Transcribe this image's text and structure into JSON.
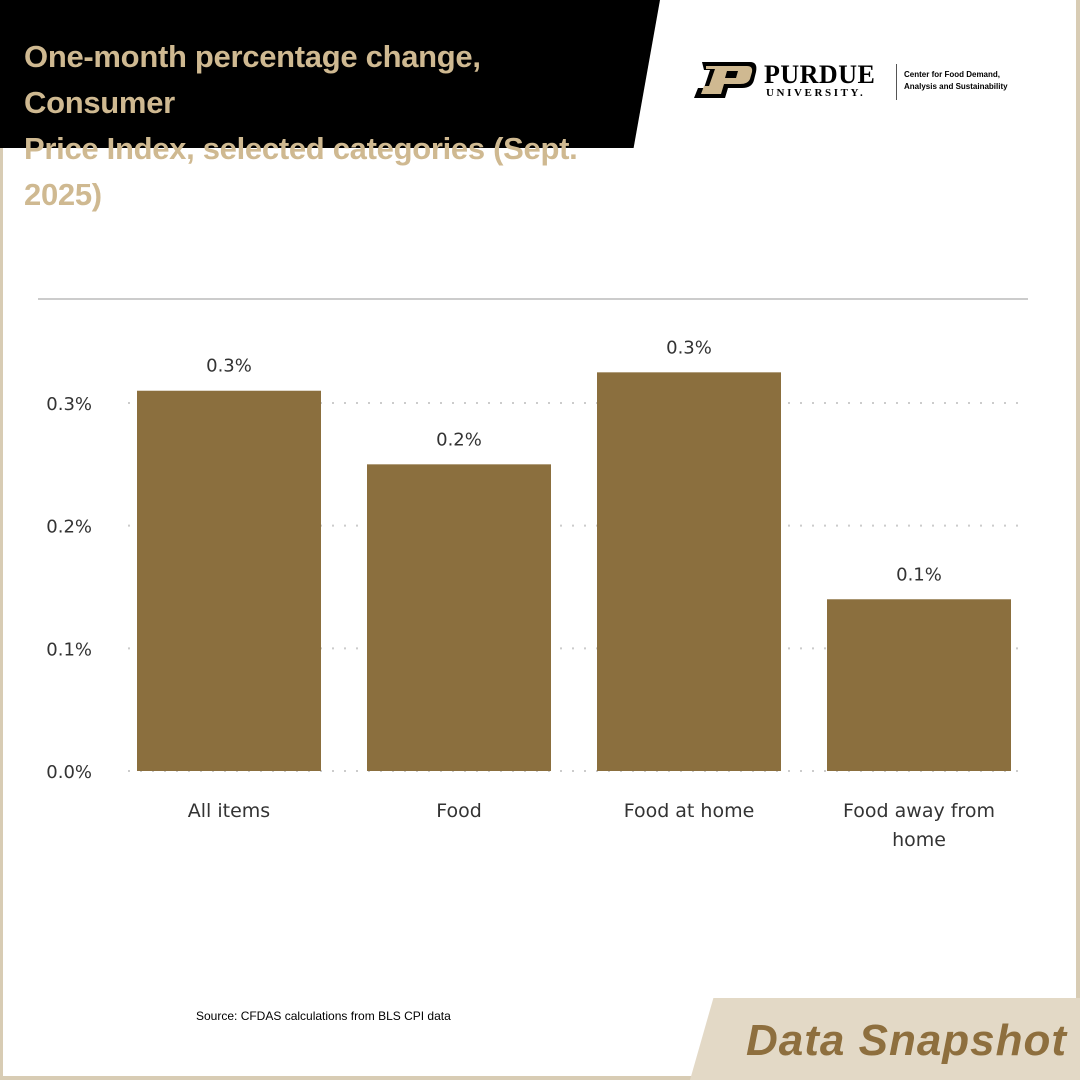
{
  "header": {
    "title_line1": "One-month percentage change, Consumer",
    "title_line2": "Price Index, selected categories (Sept. 2025)"
  },
  "logo": {
    "name": "PURDUE",
    "sub": "UNIVERSITY.",
    "center_line1": "Center for Food Demand,",
    "center_line2": "Analysis and Sustainability"
  },
  "colors": {
    "bar": "#8b6f3e",
    "title": "#cfb991",
    "banner": "#000000",
    "accent_bg": "#e3d9c6",
    "gridline": "#cccccc"
  },
  "chart_data": {
    "type": "bar",
    "categories": [
      "All items",
      "Food",
      "Food at home",
      "Food away from home"
    ],
    "values": [
      0.31,
      0.25,
      0.325,
      0.14
    ],
    "data_labels": [
      "0.3%",
      "0.2%",
      "0.3%",
      "0.1%"
    ],
    "yticks": [
      0.0,
      0.1,
      0.2,
      0.3
    ],
    "ytick_labels": [
      "0.0%",
      "0.1%",
      "0.2%",
      "0.3%"
    ],
    "ylim": [
      0,
      0.3
    ],
    "grid": true,
    "legend": "none"
  },
  "footer": {
    "source": "Source: CFDAS calculations from BLS CPI data",
    "badge": "Data Snapshot"
  }
}
